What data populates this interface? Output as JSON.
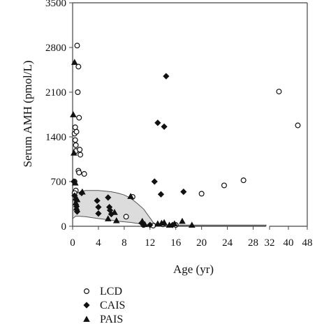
{
  "chart_data": {
    "type": "scatter",
    "title": "",
    "xlabel": "Age (yr)",
    "ylabel": "Serum AMH (pmol/L)",
    "ylim": [
      0,
      3500
    ],
    "y_ticks": [
      0,
      700,
      1400,
      2100,
      2800,
      3500
    ],
    "x_ticks_left": [
      0,
      4,
      8,
      12,
      16,
      20,
      24,
      28
    ],
    "x_ticks_right": [
      32,
      40,
      48
    ],
    "x_axis_break": true,
    "legend": {
      "position": "bottom-left",
      "entries": [
        "LCD",
        "CAIS",
        "PAIS"
      ]
    },
    "reference_band": {
      "x": [
        0,
        0.5,
        2,
        4,
        6,
        7,
        8,
        9,
        10,
        11,
        11.5,
        12,
        12.5,
        13,
        13.5,
        14,
        15,
        16,
        30
      ],
      "upper": [
        380,
        520,
        560,
        560,
        540,
        520,
        490,
        440,
        360,
        270,
        200,
        130,
        60,
        25,
        20,
        20,
        20,
        20,
        20
      ],
      "lower": [
        120,
        160,
        150,
        120,
        95,
        80,
        70,
        60,
        45,
        30,
        20,
        10,
        5,
        5,
        5,
        5,
        5,
        5,
        5
      ]
    },
    "series": [
      {
        "name": "LCD",
        "marker": "open-circle",
        "points": [
          [
            0.3,
            1450
          ],
          [
            0.4,
            1550
          ],
          [
            0.4,
            1350
          ],
          [
            0.5,
            1270
          ],
          [
            0.5,
            1180
          ],
          [
            0.6,
            1480
          ],
          [
            0.7,
            2830
          ],
          [
            0.8,
            2100
          ],
          [
            0.9,
            2500
          ],
          [
            1,
            1700
          ],
          [
            1.1,
            1200
          ],
          [
            1.2,
            1120
          ],
          [
            0.9,
            870
          ],
          [
            1,
            840
          ],
          [
            1.8,
            820
          ],
          [
            0.3,
            700
          ],
          [
            0.5,
            560
          ],
          [
            0.3,
            520
          ],
          [
            8.3,
            150
          ],
          [
            9.3,
            460
          ],
          [
            11,
            20
          ],
          [
            12.5,
            10
          ],
          [
            14,
            30
          ],
          [
            16,
            20
          ],
          [
            20,
            510
          ],
          [
            23.5,
            640
          ],
          [
            26.5,
            720
          ],
          [
            36,
            2110
          ],
          [
            44,
            1580
          ]
        ]
      },
      {
        "name": "CAIS",
        "marker": "filled-diamond",
        "points": [
          [
            0.2,
            700
          ],
          [
            0.3,
            480
          ],
          [
            0.5,
            420
          ],
          [
            0.6,
            310
          ],
          [
            0.7,
            230
          ],
          [
            1.4,
            520
          ],
          [
            3.8,
            400
          ],
          [
            4,
            300
          ],
          [
            4,
            200
          ],
          [
            5.5,
            450
          ],
          [
            5.7,
            300
          ],
          [
            5.8,
            250
          ],
          [
            6,
            190
          ],
          [
            10.7,
            50
          ],
          [
            12,
            20
          ],
          [
            12.7,
            700
          ],
          [
            13.2,
            1620
          ],
          [
            13.7,
            500
          ],
          [
            14.2,
            1560
          ],
          [
            14.5,
            2350
          ],
          [
            15.5,
            20
          ],
          [
            17.2,
            540
          ]
        ]
      },
      {
        "name": "PAIS",
        "marker": "filled-triangle",
        "points": [
          [
            0.1,
            1750
          ],
          [
            0.2,
            1150
          ],
          [
            0.3,
            2570
          ],
          [
            0.4,
            680
          ],
          [
            0.5,
            370
          ],
          [
            0.6,
            290
          ],
          [
            0.7,
            420
          ],
          [
            1.5,
            540
          ],
          [
            5.5,
            120
          ],
          [
            6.5,
            220
          ],
          [
            6.8,
            90
          ],
          [
            9,
            470
          ],
          [
            10.8,
            80
          ],
          [
            11.2,
            30
          ],
          [
            13.2,
            40
          ],
          [
            13.8,
            50
          ],
          [
            14.2,
            60
          ],
          [
            15,
            20
          ],
          [
            15.8,
            40
          ],
          [
            17,
            80
          ],
          [
            18.5,
            20
          ]
        ]
      }
    ]
  }
}
